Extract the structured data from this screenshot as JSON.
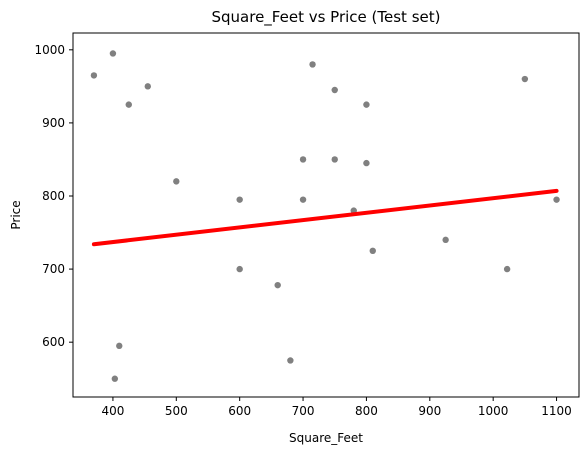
{
  "chart_data": {
    "type": "scatter",
    "title": "Square_Feet vs Price (Test set)",
    "xlabel": "Square_Feet",
    "ylabel": "Price",
    "xlim": [
      337,
      1137
    ],
    "ylim": [
      525,
      1023
    ],
    "xticks": [
      400,
      500,
      600,
      700,
      800,
      900,
      1000,
      1100
    ],
    "yticks": [
      600,
      700,
      800,
      900,
      1000
    ],
    "grid": false,
    "colors": {
      "points": "#808080",
      "line": "#ff0000"
    },
    "series": [
      {
        "type": "scatter",
        "points": [
          {
            "x": 370,
            "y": 965
          },
          {
            "x": 400,
            "y": 995
          },
          {
            "x": 425,
            "y": 925
          },
          {
            "x": 455,
            "y": 950
          },
          {
            "x": 410,
            "y": 595
          },
          {
            "x": 403,
            "y": 550
          },
          {
            "x": 500,
            "y": 820
          },
          {
            "x": 600,
            "y": 795
          },
          {
            "x": 600,
            "y": 700
          },
          {
            "x": 660,
            "y": 678
          },
          {
            "x": 680,
            "y": 575
          },
          {
            "x": 700,
            "y": 850
          },
          {
            "x": 700,
            "y": 795
          },
          {
            "x": 715,
            "y": 980
          },
          {
            "x": 750,
            "y": 945
          },
          {
            "x": 750,
            "y": 850
          },
          {
            "x": 780,
            "y": 780
          },
          {
            "x": 800,
            "y": 925
          },
          {
            "x": 800,
            "y": 845
          },
          {
            "x": 810,
            "y": 725
          },
          {
            "x": 925,
            "y": 740
          },
          {
            "x": 1022,
            "y": 700
          },
          {
            "x": 1050,
            "y": 960
          },
          {
            "x": 1100,
            "y": 795
          }
        ]
      },
      {
        "type": "line",
        "points": [
          {
            "x": 370,
            "y": 734
          },
          {
            "x": 1100,
            "y": 807
          }
        ]
      }
    ]
  }
}
